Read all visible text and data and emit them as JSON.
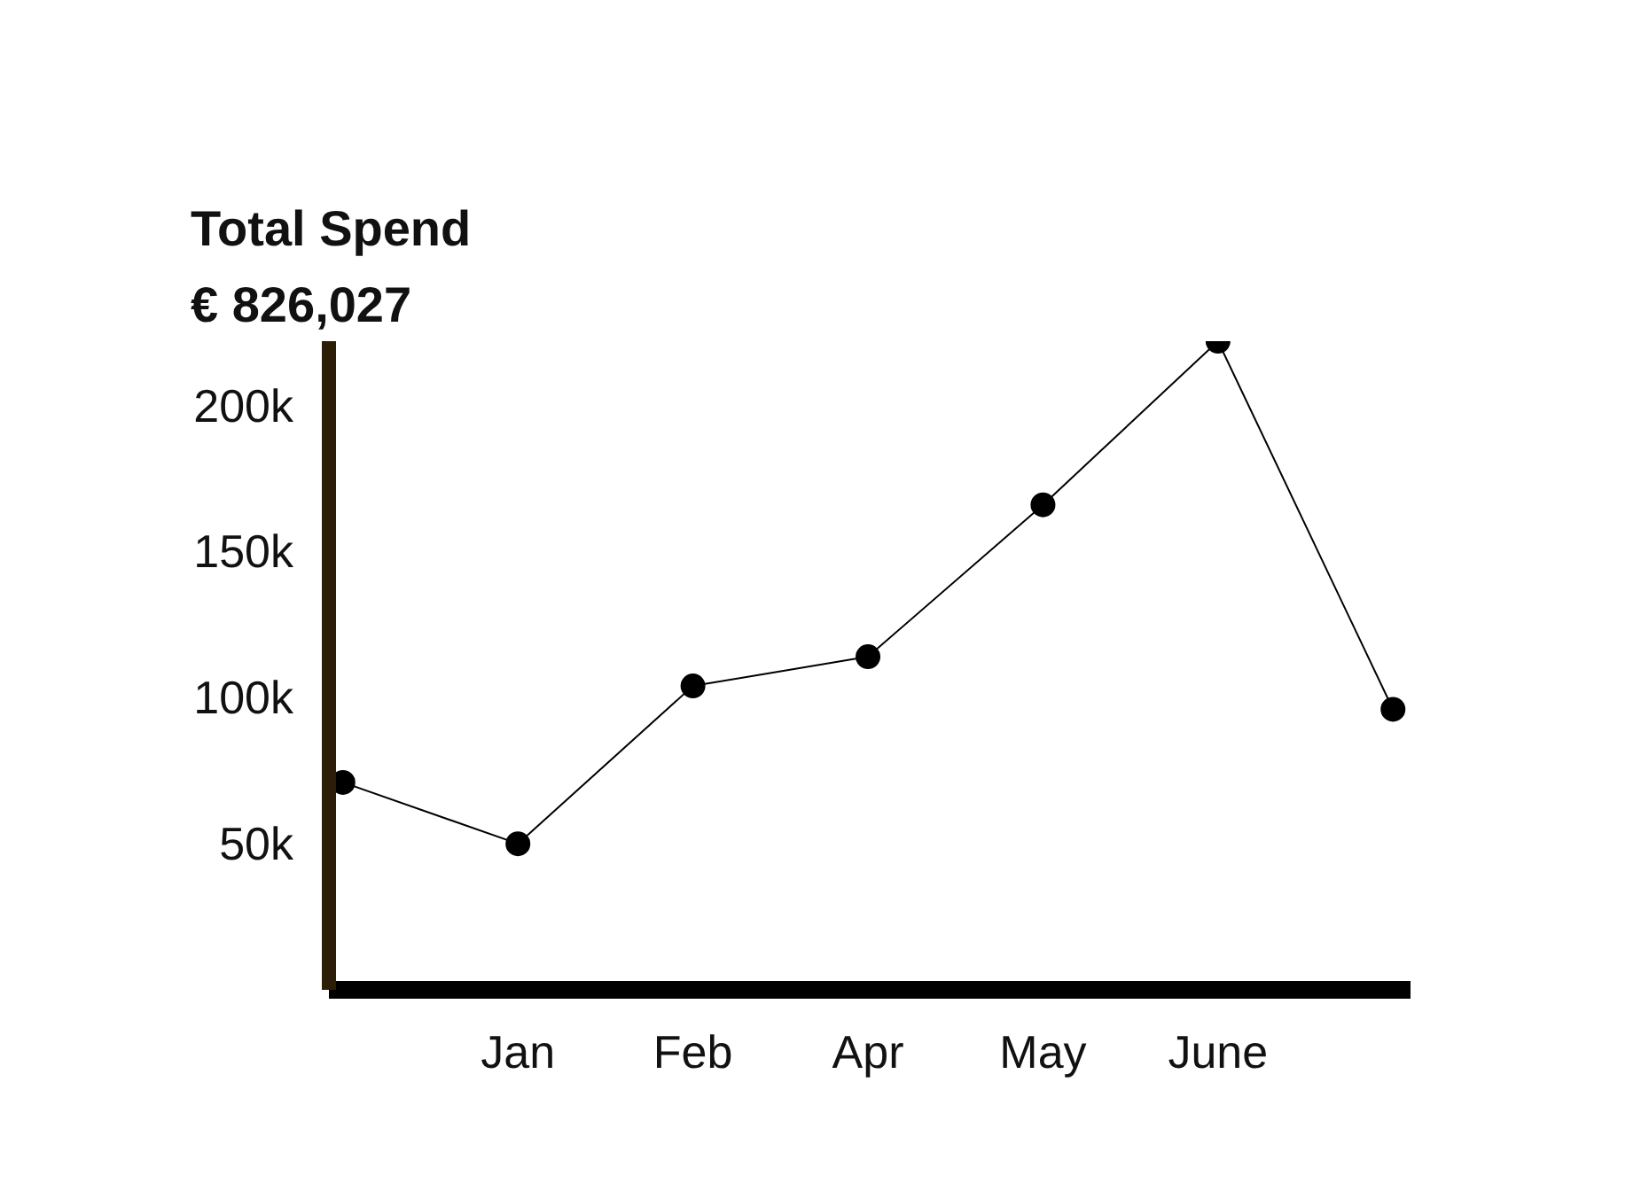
{
  "chart_data": {
    "type": "line",
    "title": "Total Spend",
    "subtitle": "€ 826,027",
    "categories": [
      null,
      "Jan",
      "Feb",
      "Apr",
      "May",
      "June",
      null
    ],
    "series": [
      {
        "color": "#000000",
        "values": [
          71000,
          50000,
          104000,
          114000,
          166000,
          222000,
          96000
        ]
      }
    ],
    "ylim": [
      0,
      222000
    ],
    "yticks": [
      {
        "value": 50000,
        "label": "50k"
      },
      {
        "value": 100000,
        "label": "100k"
      },
      {
        "value": 150000,
        "label": "150k"
      },
      {
        "value": 200000,
        "label": "200k"
      }
    ],
    "grid": false,
    "marker": "circle",
    "line_style": "solid"
  }
}
